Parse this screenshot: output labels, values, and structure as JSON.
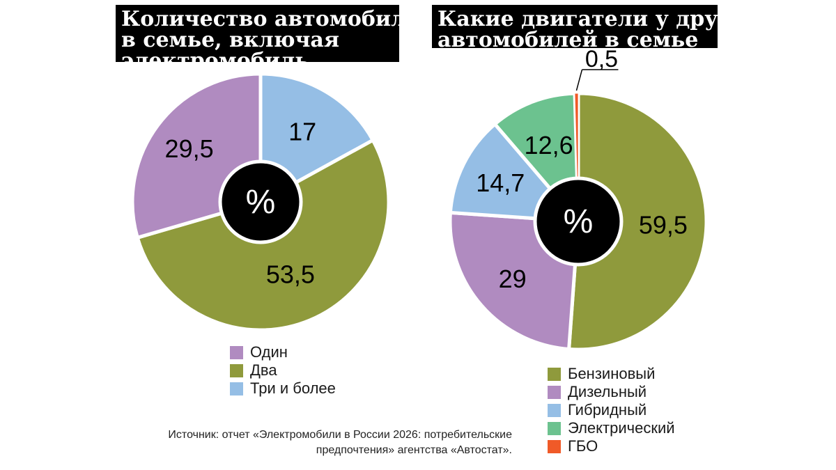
{
  "charts": [
    {
      "title_lines": [
        "Количество автомобилей",
        "в семье, включая",
        "электромобиль"
      ],
      "center_label": "%",
      "legend": [
        {
          "label": "Один",
          "color": "#b08bc0"
        },
        {
          "label": "Два",
          "color": "#8f9a3c"
        },
        {
          "label": "Три и более",
          "color": "#95bee5"
        }
      ]
    },
    {
      "title_lines": [
        "Какие двигатели у других",
        "автомобилей в семье"
      ],
      "center_label": "%",
      "legend": [
        {
          "label": "Бензиновый",
          "color": "#8f9a3c"
        },
        {
          "label": "Дизельный",
          "color": "#b08bc0"
        },
        {
          "label": "Гибридный",
          "color": "#95bee5"
        },
        {
          "label": "Электрический",
          "color": "#6cc28f"
        },
        {
          "label": "ГБО",
          "color": "#f05a28"
        }
      ]
    }
  ],
  "source_lines": [
    "Источник: отчет «Электромобили в России 2026: потребительские",
    "предпочтения» агентства «Автостат»."
  ],
  "chart_data": [
    {
      "type": "pie",
      "title": "Количество автомобилей в семье, включая электромобиль",
      "unit": "%",
      "slices": [
        {
          "name": "Три и более",
          "value": 17,
          "label": "17",
          "color": "#95bee5"
        },
        {
          "name": "Два",
          "value": 53.5,
          "label": "53,5",
          "color": "#8f9a3c"
        },
        {
          "name": "Один",
          "value": 29.5,
          "label": "29,5",
          "color": "#b08bc0"
        }
      ]
    },
    {
      "type": "pie",
      "title": "Какие двигатели у других автомобилей в семье",
      "unit": "%",
      "slices": [
        {
          "name": "Бензиновый",
          "value": 59.5,
          "label": "59,5",
          "color": "#8f9a3c"
        },
        {
          "name": "Дизельный",
          "value": 29,
          "label": "29",
          "color": "#b08bc0"
        },
        {
          "name": "Гибридный",
          "value": 14.7,
          "label": "14,7",
          "color": "#95bee5"
        },
        {
          "name": "Электрический",
          "value": 12.6,
          "label": "12,6",
          "color": "#6cc28f"
        },
        {
          "name": "ГБО",
          "value": 0.5,
          "label": "0,5",
          "color": "#f05a28"
        }
      ]
    }
  ]
}
